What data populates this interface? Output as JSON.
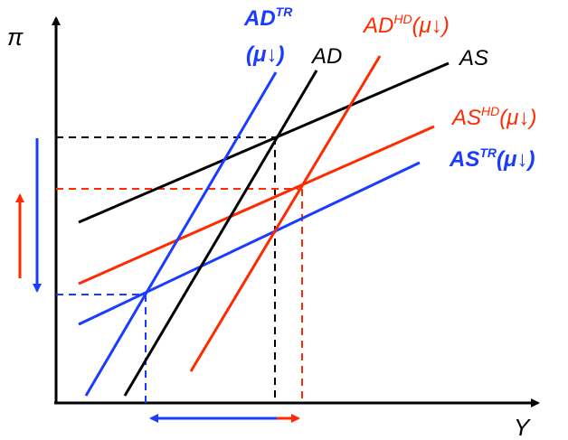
{
  "colors": {
    "black": "#000000",
    "red": "#ff2a00",
    "blue": "#1a3cff"
  },
  "axes": {
    "y_label": "π",
    "x_label": "Y"
  },
  "labels": {
    "ad_tr": {
      "main": "AD",
      "sup": "TR",
      "note": "(μ↓)"
    },
    "ad": {
      "main": "AD"
    },
    "ad_hd": {
      "main": "AD",
      "sup": "HD",
      "note": "(μ↓)"
    },
    "as": {
      "main": "AS"
    },
    "as_hd": {
      "main": "AS",
      "sup": "HD",
      "note": "(μ↓)"
    },
    "as_tr": {
      "main": "AS",
      "sup": "TR",
      "note": "(μ↓)"
    }
  }
}
